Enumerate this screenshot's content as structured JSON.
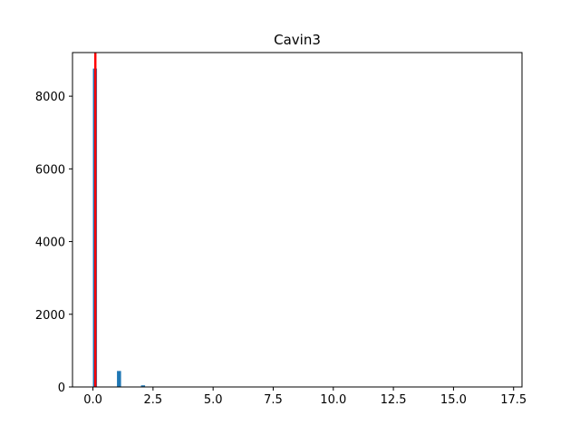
{
  "chart_data": {
    "type": "bar",
    "title": "Cavin3",
    "xlabel": "",
    "ylabel": "",
    "xlim": [
      -0.85,
      17.85
    ],
    "ylim": [
      0,
      9200
    ],
    "x_ticks": [
      0.0,
      2.5,
      5.0,
      7.5,
      10.0,
      12.5,
      15.0,
      17.5
    ],
    "x_tick_labels": [
      "0.0",
      "2.5",
      "5.0",
      "7.5",
      "10.0",
      "12.5",
      "15.0",
      "17.5"
    ],
    "y_ticks": [
      0,
      2000,
      4000,
      6000,
      8000
    ],
    "y_tick_labels": [
      "0",
      "2000",
      "4000",
      "6000",
      "8000"
    ],
    "bin_width": 0.17,
    "bins": [
      {
        "x": 0.0,
        "count": 8760
      },
      {
        "x": 1.0,
        "count": 440
      },
      {
        "x": 2.0,
        "count": 45
      },
      {
        "x": 3.0,
        "count": 10
      },
      {
        "x": 4.0,
        "count": 3
      }
    ],
    "bar_color": "#1f77b4",
    "vline": {
      "x": 0.1,
      "color": "#ff0000"
    },
    "grid": false,
    "legend": "none"
  }
}
